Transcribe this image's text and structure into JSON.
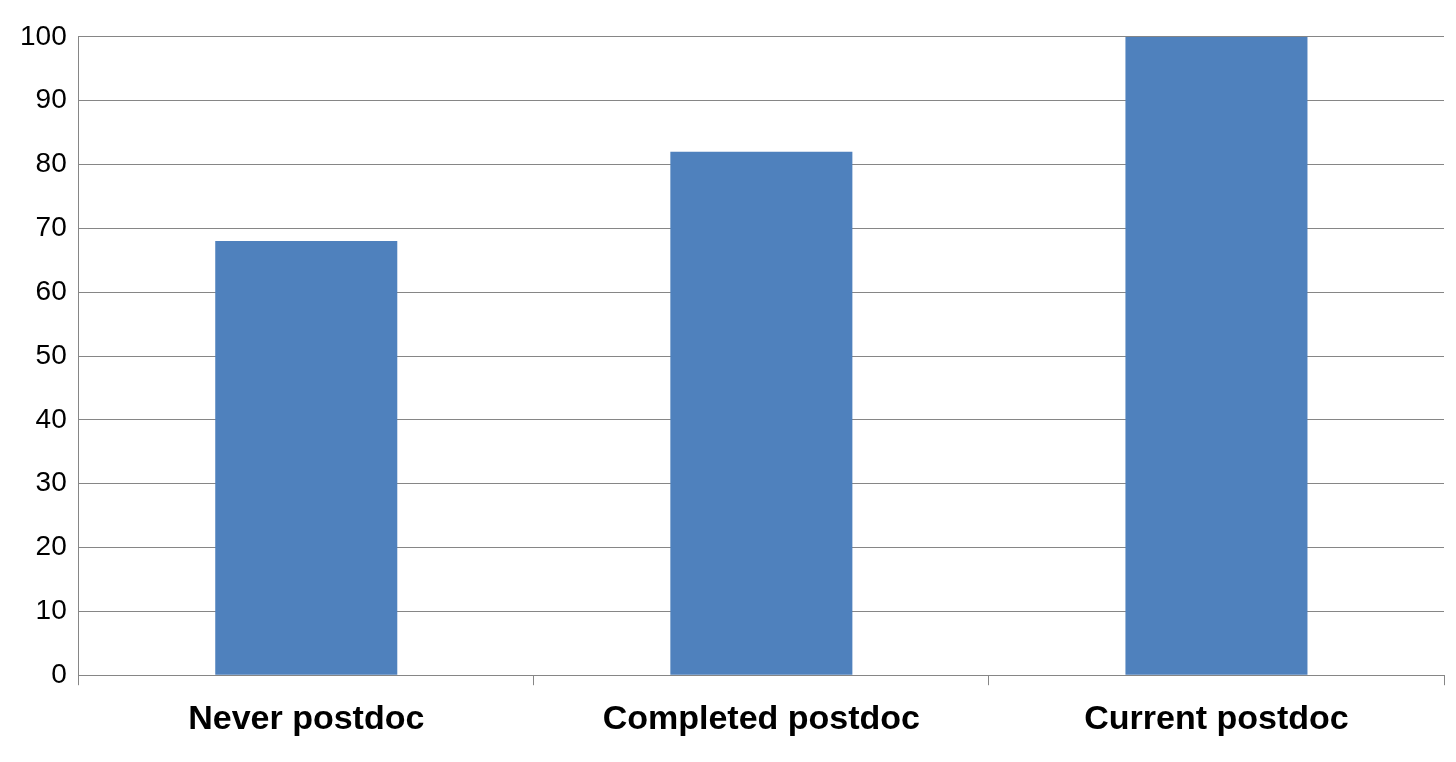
{
  "chart_data": {
    "type": "bar",
    "categories": [
      "Never postdoc",
      "Completed postdoc",
      "Current postdoc"
    ],
    "values": [
      68,
      82,
      100
    ],
    "color": "#4f81bd",
    "ylim": [
      0,
      100
    ],
    "yticks": [
      0,
      10,
      20,
      30,
      40,
      50,
      60,
      70,
      80,
      90,
      100
    ],
    "grid": "y",
    "legend": false
  }
}
